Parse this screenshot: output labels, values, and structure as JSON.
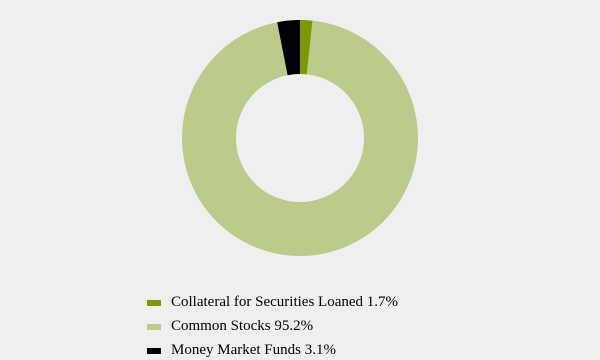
{
  "chart_data": {
    "type": "donut",
    "categories": [
      "Collateral for Securities Loaned",
      "Common Stocks",
      "Money Market Funds"
    ],
    "values": [
      1.7,
      95.2,
      3.1
    ],
    "value_labels": [
      "1.7%",
      "95.2%",
      "3.1%"
    ],
    "colors": [
      "#7a9a01",
      "#bccb8c",
      "#000000"
    ]
  }
}
